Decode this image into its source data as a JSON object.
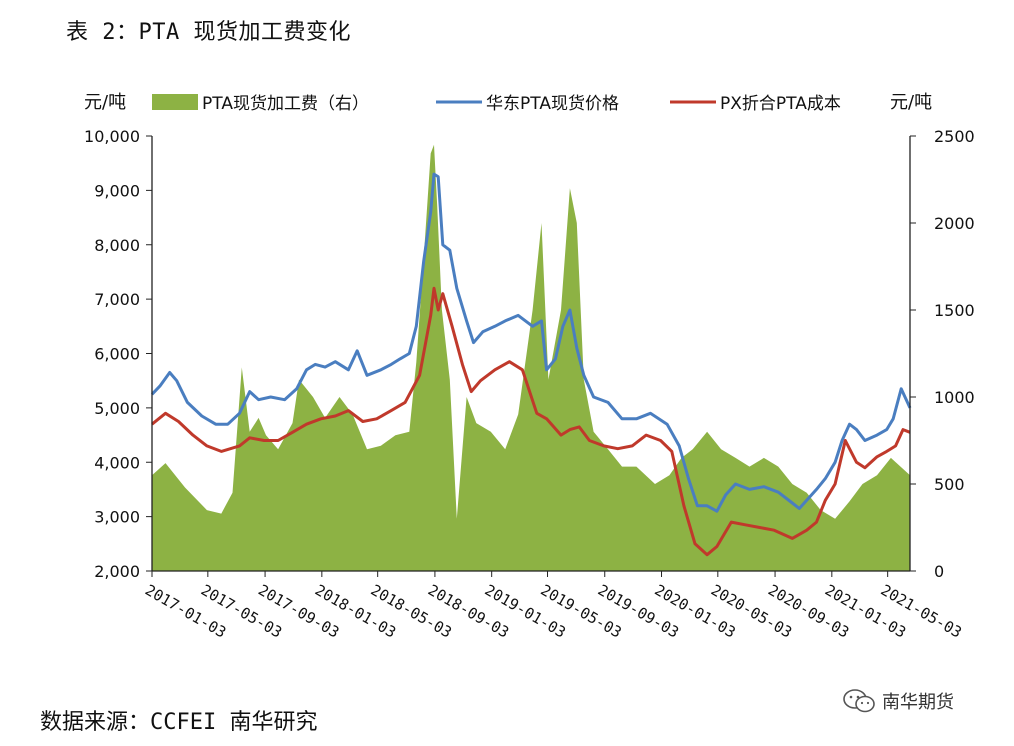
{
  "header": {
    "title": "表 2：PTA 现货加工费变化"
  },
  "footer": {
    "source": "数据来源：CCFEI 南华研究",
    "watermark_text": "南华期货",
    "watermark_icon": "wechat-icon"
  },
  "chart_data": {
    "type": "line",
    "title": "表 2：PTA 现货加工费变化",
    "y_left_label": "元/吨",
    "y_right_label": "元/吨",
    "ylim_left": [
      2000,
      10000
    ],
    "ylim_right": [
      0,
      2500
    ],
    "y_left_ticks": [
      "2,000",
      "3,000",
      "4,000",
      "5,000",
      "6,000",
      "7,000",
      "8,000",
      "9,000",
      "10,000"
    ],
    "y_right_ticks": [
      "0",
      "500",
      "1000",
      "1500",
      "2000",
      "2500"
    ],
    "x_ticks": [
      "2017-01-03",
      "2017-05-03",
      "2017-09-03",
      "2018-01-03",
      "2018-05-03",
      "2018-09-03",
      "2019-01-03",
      "2019-05-03",
      "2019-09-03",
      "2020-01-03",
      "2020-05-03",
      "2020-09-03",
      "2021-01-03",
      "2021-05-03"
    ],
    "x_range": [
      "2017-01-03",
      "2021-06-20"
    ],
    "grid": false,
    "legend_position": "top",
    "series": [
      {
        "name": "PTA现货加工费（右）",
        "type": "area",
        "axis": "right",
        "color": "#8db244",
        "points": [
          [
            "2017-01-03",
            550
          ],
          [
            "2017-02-01",
            620
          ],
          [
            "2017-03-15",
            480
          ],
          [
            "2017-05-01",
            350
          ],
          [
            "2017-06-01",
            330
          ],
          [
            "2017-06-25",
            450
          ],
          [
            "2017-07-15",
            1170
          ],
          [
            "2017-08-01",
            800
          ],
          [
            "2017-08-20",
            880
          ],
          [
            "2017-09-05",
            780
          ],
          [
            "2017-10-01",
            700
          ],
          [
            "2017-11-01",
            850
          ],
          [
            "2017-11-15",
            1100
          ],
          [
            "2017-12-15",
            1000
          ],
          [
            "2018-01-10",
            880
          ],
          [
            "2018-02-10",
            1000
          ],
          [
            "2018-03-10",
            900
          ],
          [
            "2018-04-10",
            700
          ],
          [
            "2018-05-10",
            720
          ],
          [
            "2018-06-10",
            780
          ],
          [
            "2018-07-10",
            800
          ],
          [
            "2018-07-25",
            1200
          ],
          [
            "2018-08-10",
            1800
          ],
          [
            "2018-08-25",
            2400
          ],
          [
            "2018-09-01",
            2450
          ],
          [
            "2018-09-08",
            2100
          ],
          [
            "2018-09-18",
            1500
          ],
          [
            "2018-10-05",
            1100
          ],
          [
            "2018-10-20",
            300
          ],
          [
            "2018-11-10",
            1000
          ],
          [
            "2018-12-01",
            850
          ],
          [
            "2019-01-01",
            800
          ],
          [
            "2019-02-01",
            700
          ],
          [
            "2019-03-01",
            900
          ],
          [
            "2019-04-01",
            1500
          ],
          [
            "2019-04-20",
            2000
          ],
          [
            "2019-05-05",
            1100
          ],
          [
            "2019-06-01",
            1500
          ],
          [
            "2019-06-20",
            2200
          ],
          [
            "2019-07-05",
            2000
          ],
          [
            "2019-07-20",
            1100
          ],
          [
            "2019-08-10",
            800
          ],
          [
            "2019-09-10",
            700
          ],
          [
            "2019-10-10",
            600
          ],
          [
            "2019-11-10",
            600
          ],
          [
            "2019-12-20",
            500
          ],
          [
            "2020-01-20",
            550
          ],
          [
            "2020-02-15",
            650
          ],
          [
            "2020-03-10",
            700
          ],
          [
            "2020-04-10",
            800
          ],
          [
            "2020-05-10",
            700
          ],
          [
            "2020-06-10",
            650
          ],
          [
            "2020-07-10",
            600
          ],
          [
            "2020-08-10",
            650
          ],
          [
            "2020-09-10",
            600
          ],
          [
            "2020-10-10",
            500
          ],
          [
            "2020-11-10",
            450
          ],
          [
            "2020-12-10",
            350
          ],
          [
            "2021-01-10",
            300
          ],
          [
            "2021-02-10",
            400
          ],
          [
            "2021-03-10",
            500
          ],
          [
            "2021-04-10",
            550
          ],
          [
            "2021-05-10",
            650
          ],
          [
            "2021-06-20",
            550
          ]
        ]
      },
      {
        "name": "华东PTA现货价格",
        "type": "line",
        "axis": "left",
        "color": "#4a7ec0",
        "points": [
          [
            "2017-01-03",
            5250
          ],
          [
            "2017-01-20",
            5400
          ],
          [
            "2017-02-10",
            5650
          ],
          [
            "2017-02-25",
            5500
          ],
          [
            "2017-03-20",
            5100
          ],
          [
            "2017-04-20",
            4850
          ],
          [
            "2017-05-20",
            4700
          ],
          [
            "2017-06-15",
            4700
          ],
          [
            "2017-07-10",
            4900
          ],
          [
            "2017-08-01",
            5300
          ],
          [
            "2017-08-20",
            5150
          ],
          [
            "2017-09-15",
            5200
          ],
          [
            "2017-10-15",
            5150
          ],
          [
            "2017-11-10",
            5350
          ],
          [
            "2017-12-01",
            5700
          ],
          [
            "2017-12-20",
            5800
          ],
          [
            "2018-01-10",
            5750
          ],
          [
            "2018-02-01",
            5850
          ],
          [
            "2018-03-01",
            5700
          ],
          [
            "2018-03-20",
            6050
          ],
          [
            "2018-04-10",
            5600
          ],
          [
            "2018-05-10",
            5700
          ],
          [
            "2018-06-01",
            5800
          ],
          [
            "2018-06-20",
            5900
          ],
          [
            "2018-07-10",
            6000
          ],
          [
            "2018-07-25",
            6500
          ],
          [
            "2018-08-10",
            7700
          ],
          [
            "2018-08-25",
            8600
          ],
          [
            "2018-09-01",
            9300
          ],
          [
            "2018-09-10",
            9250
          ],
          [
            "2018-09-20",
            8000
          ],
          [
            "2018-10-05",
            7900
          ],
          [
            "2018-10-20",
            7200
          ],
          [
            "2018-11-10",
            6600
          ],
          [
            "2018-11-25",
            6200
          ],
          [
            "2018-12-15",
            6400
          ],
          [
            "2019-01-10",
            6500
          ],
          [
            "2019-02-01",
            6600
          ],
          [
            "2019-03-01",
            6700
          ],
          [
            "2019-04-01",
            6500
          ],
          [
            "2019-04-20",
            6600
          ],
          [
            "2019-05-01",
            5700
          ],
          [
            "2019-05-20",
            5900
          ],
          [
            "2019-06-05",
            6500
          ],
          [
            "2019-06-20",
            6800
          ],
          [
            "2019-07-05",
            6100
          ],
          [
            "2019-07-20",
            5600
          ],
          [
            "2019-08-10",
            5200
          ],
          [
            "2019-09-10",
            5100
          ],
          [
            "2019-10-10",
            4800
          ],
          [
            "2019-11-10",
            4800
          ],
          [
            "2019-12-10",
            4900
          ],
          [
            "2020-01-15",
            4700
          ],
          [
            "2020-02-10",
            4300
          ],
          [
            "2020-03-01",
            3700
          ],
          [
            "2020-03-20",
            3200
          ],
          [
            "2020-04-10",
            3200
          ],
          [
            "2020-05-01",
            3100
          ],
          [
            "2020-05-20",
            3400
          ],
          [
            "2020-06-10",
            3600
          ],
          [
            "2020-07-10",
            3500
          ],
          [
            "2020-08-10",
            3550
          ],
          [
            "2020-09-10",
            3450
          ],
          [
            "2020-10-10",
            3250
          ],
          [
            "2020-10-25",
            3150
          ],
          [
            "2020-11-10",
            3300
          ],
          [
            "2020-12-01",
            3500
          ],
          [
            "2020-12-20",
            3700
          ],
          [
            "2021-01-10",
            4000
          ],
          [
            "2021-01-25",
            4400
          ],
          [
            "2021-02-10",
            4700
          ],
          [
            "2021-02-25",
            4600
          ],
          [
            "2021-03-15",
            4400
          ],
          [
            "2021-04-10",
            4500
          ],
          [
            "2021-05-01",
            4600
          ],
          [
            "2021-05-15",
            4800
          ],
          [
            "2021-06-01",
            5350
          ],
          [
            "2021-06-20",
            5000
          ]
        ]
      },
      {
        "name": "PX折合PTA成本",
        "type": "line",
        "axis": "left",
        "color": "#c0392b",
        "points": [
          [
            "2017-01-03",
            4700
          ],
          [
            "2017-02-01",
            4900
          ],
          [
            "2017-03-01",
            4750
          ],
          [
            "2017-04-01",
            4500
          ],
          [
            "2017-05-01",
            4300
          ],
          [
            "2017-06-01",
            4200
          ],
          [
            "2017-07-10",
            4300
          ],
          [
            "2017-08-01",
            4450
          ],
          [
            "2017-09-01",
            4400
          ],
          [
            "2017-10-01",
            4400
          ],
          [
            "2017-11-01",
            4550
          ],
          [
            "2017-12-01",
            4700
          ],
          [
            "2018-01-01",
            4800
          ],
          [
            "2018-02-01",
            4850
          ],
          [
            "2018-03-01",
            4950
          ],
          [
            "2018-04-01",
            4750
          ],
          [
            "2018-05-01",
            4800
          ],
          [
            "2018-06-01",
            4950
          ],
          [
            "2018-07-01",
            5100
          ],
          [
            "2018-08-01",
            5600
          ],
          [
            "2018-08-25",
            6700
          ],
          [
            "2018-09-01",
            7200
          ],
          [
            "2018-09-10",
            6800
          ],
          [
            "2018-09-20",
            7100
          ],
          [
            "2018-10-10",
            6500
          ],
          [
            "2018-11-01",
            5800
          ],
          [
            "2018-11-20",
            5300
          ],
          [
            "2018-12-10",
            5500
          ],
          [
            "2019-01-10",
            5700
          ],
          [
            "2019-02-10",
            5850
          ],
          [
            "2019-03-10",
            5700
          ],
          [
            "2019-04-10",
            4900
          ],
          [
            "2019-05-01",
            4800
          ],
          [
            "2019-06-01",
            4500
          ],
          [
            "2019-06-20",
            4600
          ],
          [
            "2019-07-10",
            4650
          ],
          [
            "2019-08-01",
            4400
          ],
          [
            "2019-09-01",
            4300
          ],
          [
            "2019-10-01",
            4250
          ],
          [
            "2019-11-01",
            4300
          ],
          [
            "2019-12-01",
            4500
          ],
          [
            "2020-01-01",
            4400
          ],
          [
            "2020-01-25",
            4200
          ],
          [
            "2020-02-20",
            3200
          ],
          [
            "2020-03-15",
            2500
          ],
          [
            "2020-04-10",
            2300
          ],
          [
            "2020-05-01",
            2450
          ],
          [
            "2020-06-01",
            2900
          ],
          [
            "2020-07-01",
            2850
          ],
          [
            "2020-08-01",
            2800
          ],
          [
            "2020-09-01",
            2750
          ],
          [
            "2020-10-10",
            2600
          ],
          [
            "2020-11-10",
            2750
          ],
          [
            "2020-12-01",
            2900
          ],
          [
            "2020-12-20",
            3300
          ],
          [
            "2021-01-10",
            3600
          ],
          [
            "2021-02-01",
            4400
          ],
          [
            "2021-02-25",
            4000
          ],
          [
            "2021-03-15",
            3900
          ],
          [
            "2021-04-10",
            4100
          ],
          [
            "2021-05-01",
            4200
          ],
          [
            "2021-05-20",
            4300
          ],
          [
            "2021-06-05",
            4600
          ],
          [
            "2021-06-20",
            4550
          ]
        ]
      }
    ]
  }
}
